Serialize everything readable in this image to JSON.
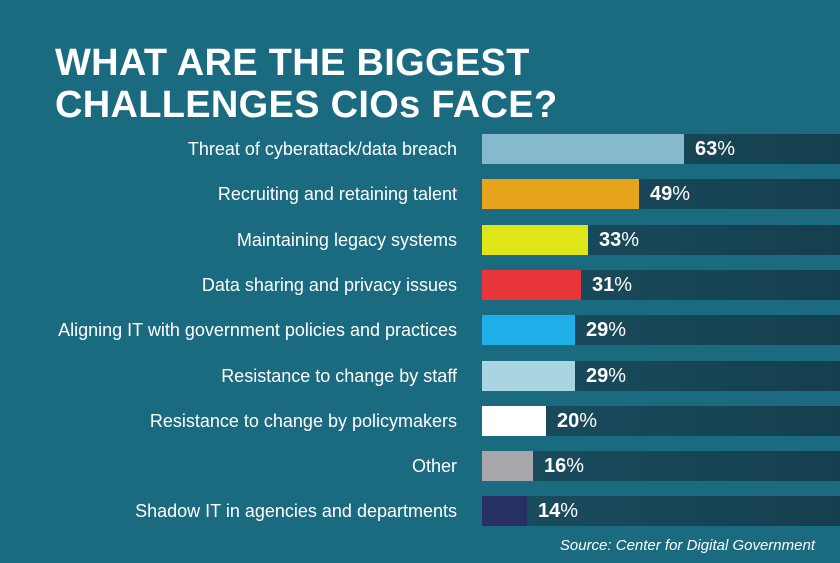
{
  "chart_data": {
    "type": "bar",
    "orientation": "horizontal",
    "title_lines": [
      "WHAT ARE THE BIGGEST",
      "CHALLENGES CIOs FACE?"
    ],
    "categories": [
      "Threat of cyberattack/data breach",
      "Recruiting and retaining talent",
      "Maintaining legacy systems",
      "Data sharing and privacy issues",
      "Aligning IT with government policies and practices",
      "Resistance to change by staff",
      "Resistance to change by policymakers",
      "Other",
      "Shadow IT in agencies and departments"
    ],
    "values": [
      63,
      49,
      33,
      31,
      29,
      29,
      20,
      16,
      14
    ],
    "value_labels": [
      "63",
      "49",
      "33",
      "31",
      "29",
      "29",
      "20",
      "16",
      "14"
    ],
    "unit": "%",
    "colors": [
      "#86b8ce",
      "#e9a41e",
      "#e0e51a",
      "#e8353a",
      "#1eaee8",
      "#a9d5e2",
      "#ffffff",
      "#a8a8ac",
      "#272f63"
    ],
    "source": "Source: Center for Digital Government"
  }
}
